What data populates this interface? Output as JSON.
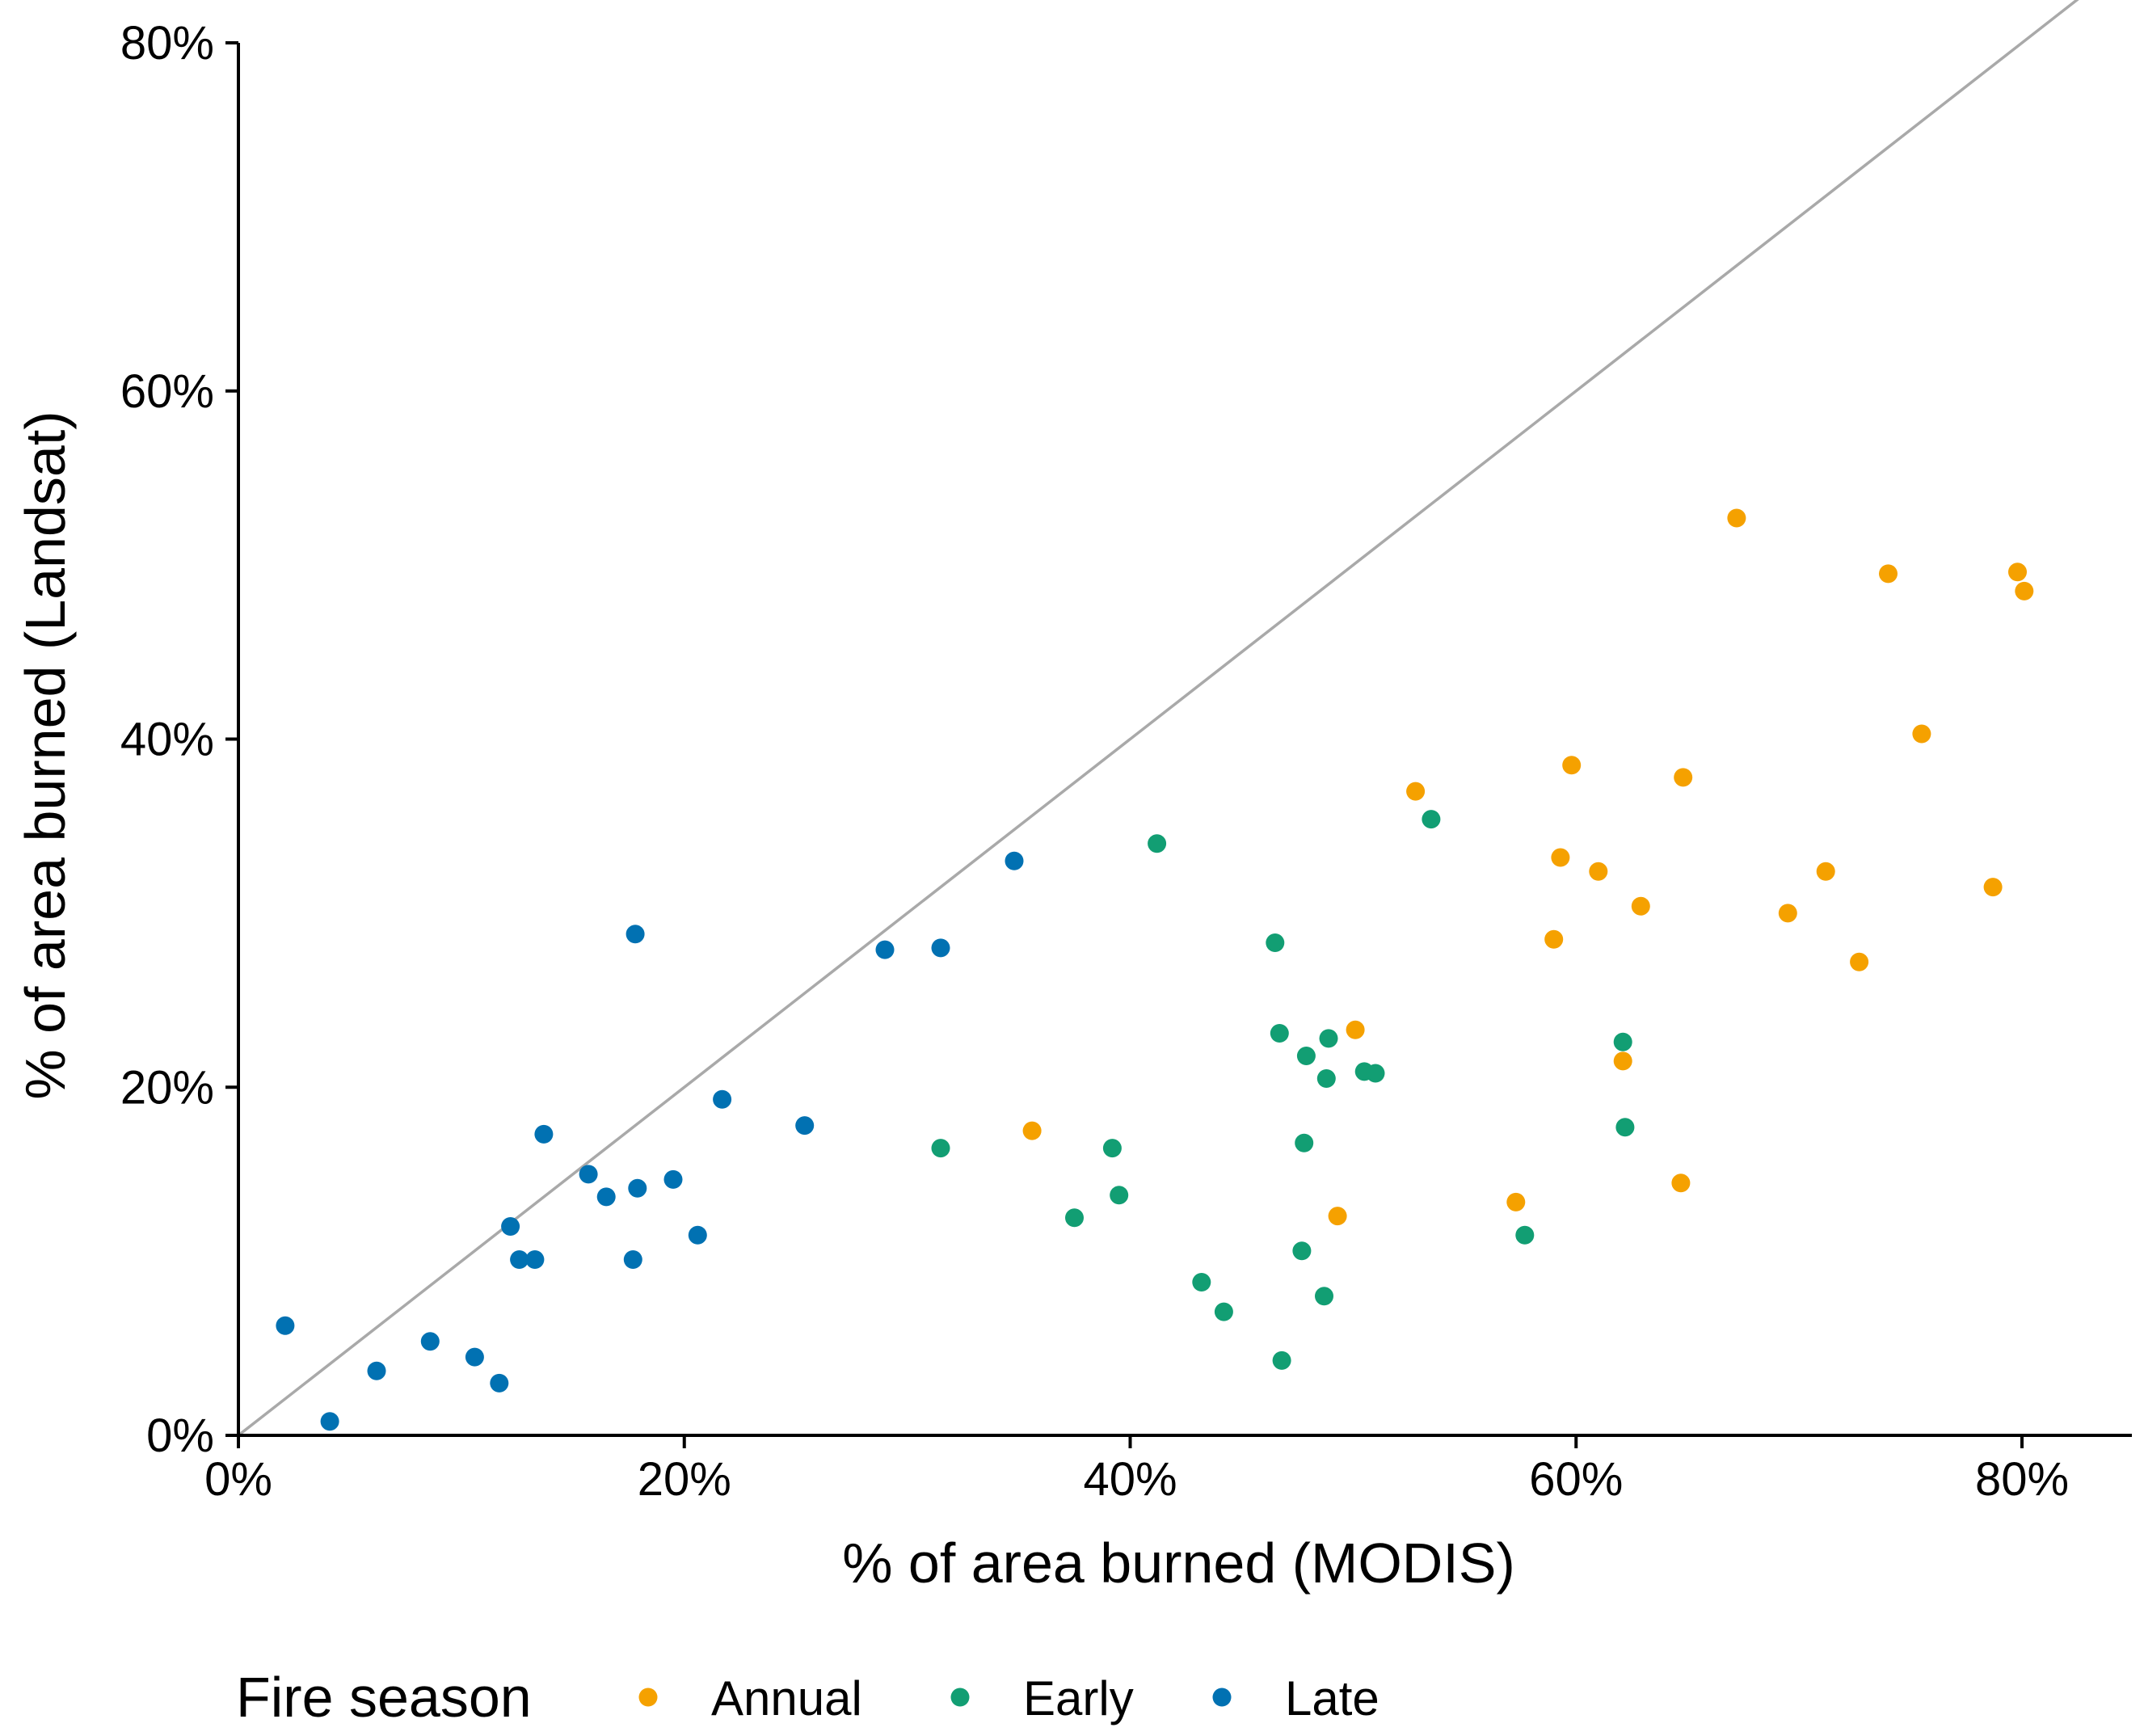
{
  "chart_data": {
    "type": "scatter",
    "title": "",
    "xlabel": "% of area burned (MODIS)",
    "ylabel": "% of area burned (Landsat)",
    "xlim": [
      0,
      85
    ],
    "ylim": [
      0,
      80
    ],
    "x_ticks": [
      0,
      20,
      40,
      60,
      80
    ],
    "y_ticks": [
      0,
      20,
      40,
      60,
      80
    ],
    "x_tick_labels": [
      "0%",
      "20%",
      "40%",
      "60%",
      "80%"
    ],
    "y_tick_labels": [
      "0%",
      "20%",
      "40%",
      "60%",
      "80%"
    ],
    "reference_line": {
      "type": "identity",
      "slope": 1,
      "intercept": 0,
      "color": "#A9A9A9"
    },
    "grid": false,
    "legend": {
      "title": "Fire season",
      "position": "bottom"
    },
    "series": [
      {
        "name": "Annual",
        "color": "#F5A100",
        "x": [
          67.2,
          74.0,
          79.8,
          80.1,
          75.5,
          59.8,
          64.8,
          52.8,
          59.3,
          61.0,
          62.9,
          71.2,
          69.5,
          72.7,
          78.7,
          59.0,
          50.1,
          62.1,
          35.6,
          57.3,
          49.3,
          64.7
        ],
        "y": [
          52.7,
          49.5,
          49.6,
          48.5,
          40.3,
          38.5,
          37.8,
          37.0,
          33.2,
          32.4,
          30.4,
          32.4,
          30.0,
          27.2,
          31.5,
          28.5,
          23.3,
          21.5,
          17.5,
          13.4,
          12.6,
          14.5
        ]
      },
      {
        "name": "Early",
        "color": "#129E73",
        "x": [
          41.2,
          53.5,
          46.5,
          46.7,
          48.9,
          47.9,
          48.8,
          50.5,
          51.0,
          62.1,
          62.2,
          31.5,
          39.2,
          39.5,
          37.5,
          47.8,
          47.7,
          57.7,
          43.2,
          44.2,
          48.7,
          46.8
        ],
        "y": [
          34.0,
          35.4,
          28.3,
          23.1,
          22.8,
          21.8,
          20.5,
          20.9,
          20.8,
          22.6,
          17.7,
          16.5,
          16.5,
          13.8,
          12.5,
          16.8,
          10.6,
          11.5,
          8.8,
          7.1,
          8.0,
          4.3
        ]
      },
      {
        "name": "Late",
        "color": "#0171B2",
        "x": [
          34.8,
          17.8,
          29.0,
          31.5,
          21.7,
          25.4,
          13.7,
          15.7,
          17.9,
          19.5,
          16.5,
          12.2,
          20.6,
          12.6,
          13.3,
          17.7,
          2.1,
          8.6,
          6.2,
          10.6,
          11.7,
          4.1
        ],
        "y": [
          33.0,
          28.8,
          27.9,
          28.0,
          19.3,
          17.8,
          17.3,
          15.0,
          14.2,
          14.7,
          13.7,
          12.0,
          11.5,
          10.1,
          10.1,
          10.1,
          6.3,
          5.4,
          3.7,
          4.5,
          3.0,
          0.8
        ]
      }
    ]
  }
}
